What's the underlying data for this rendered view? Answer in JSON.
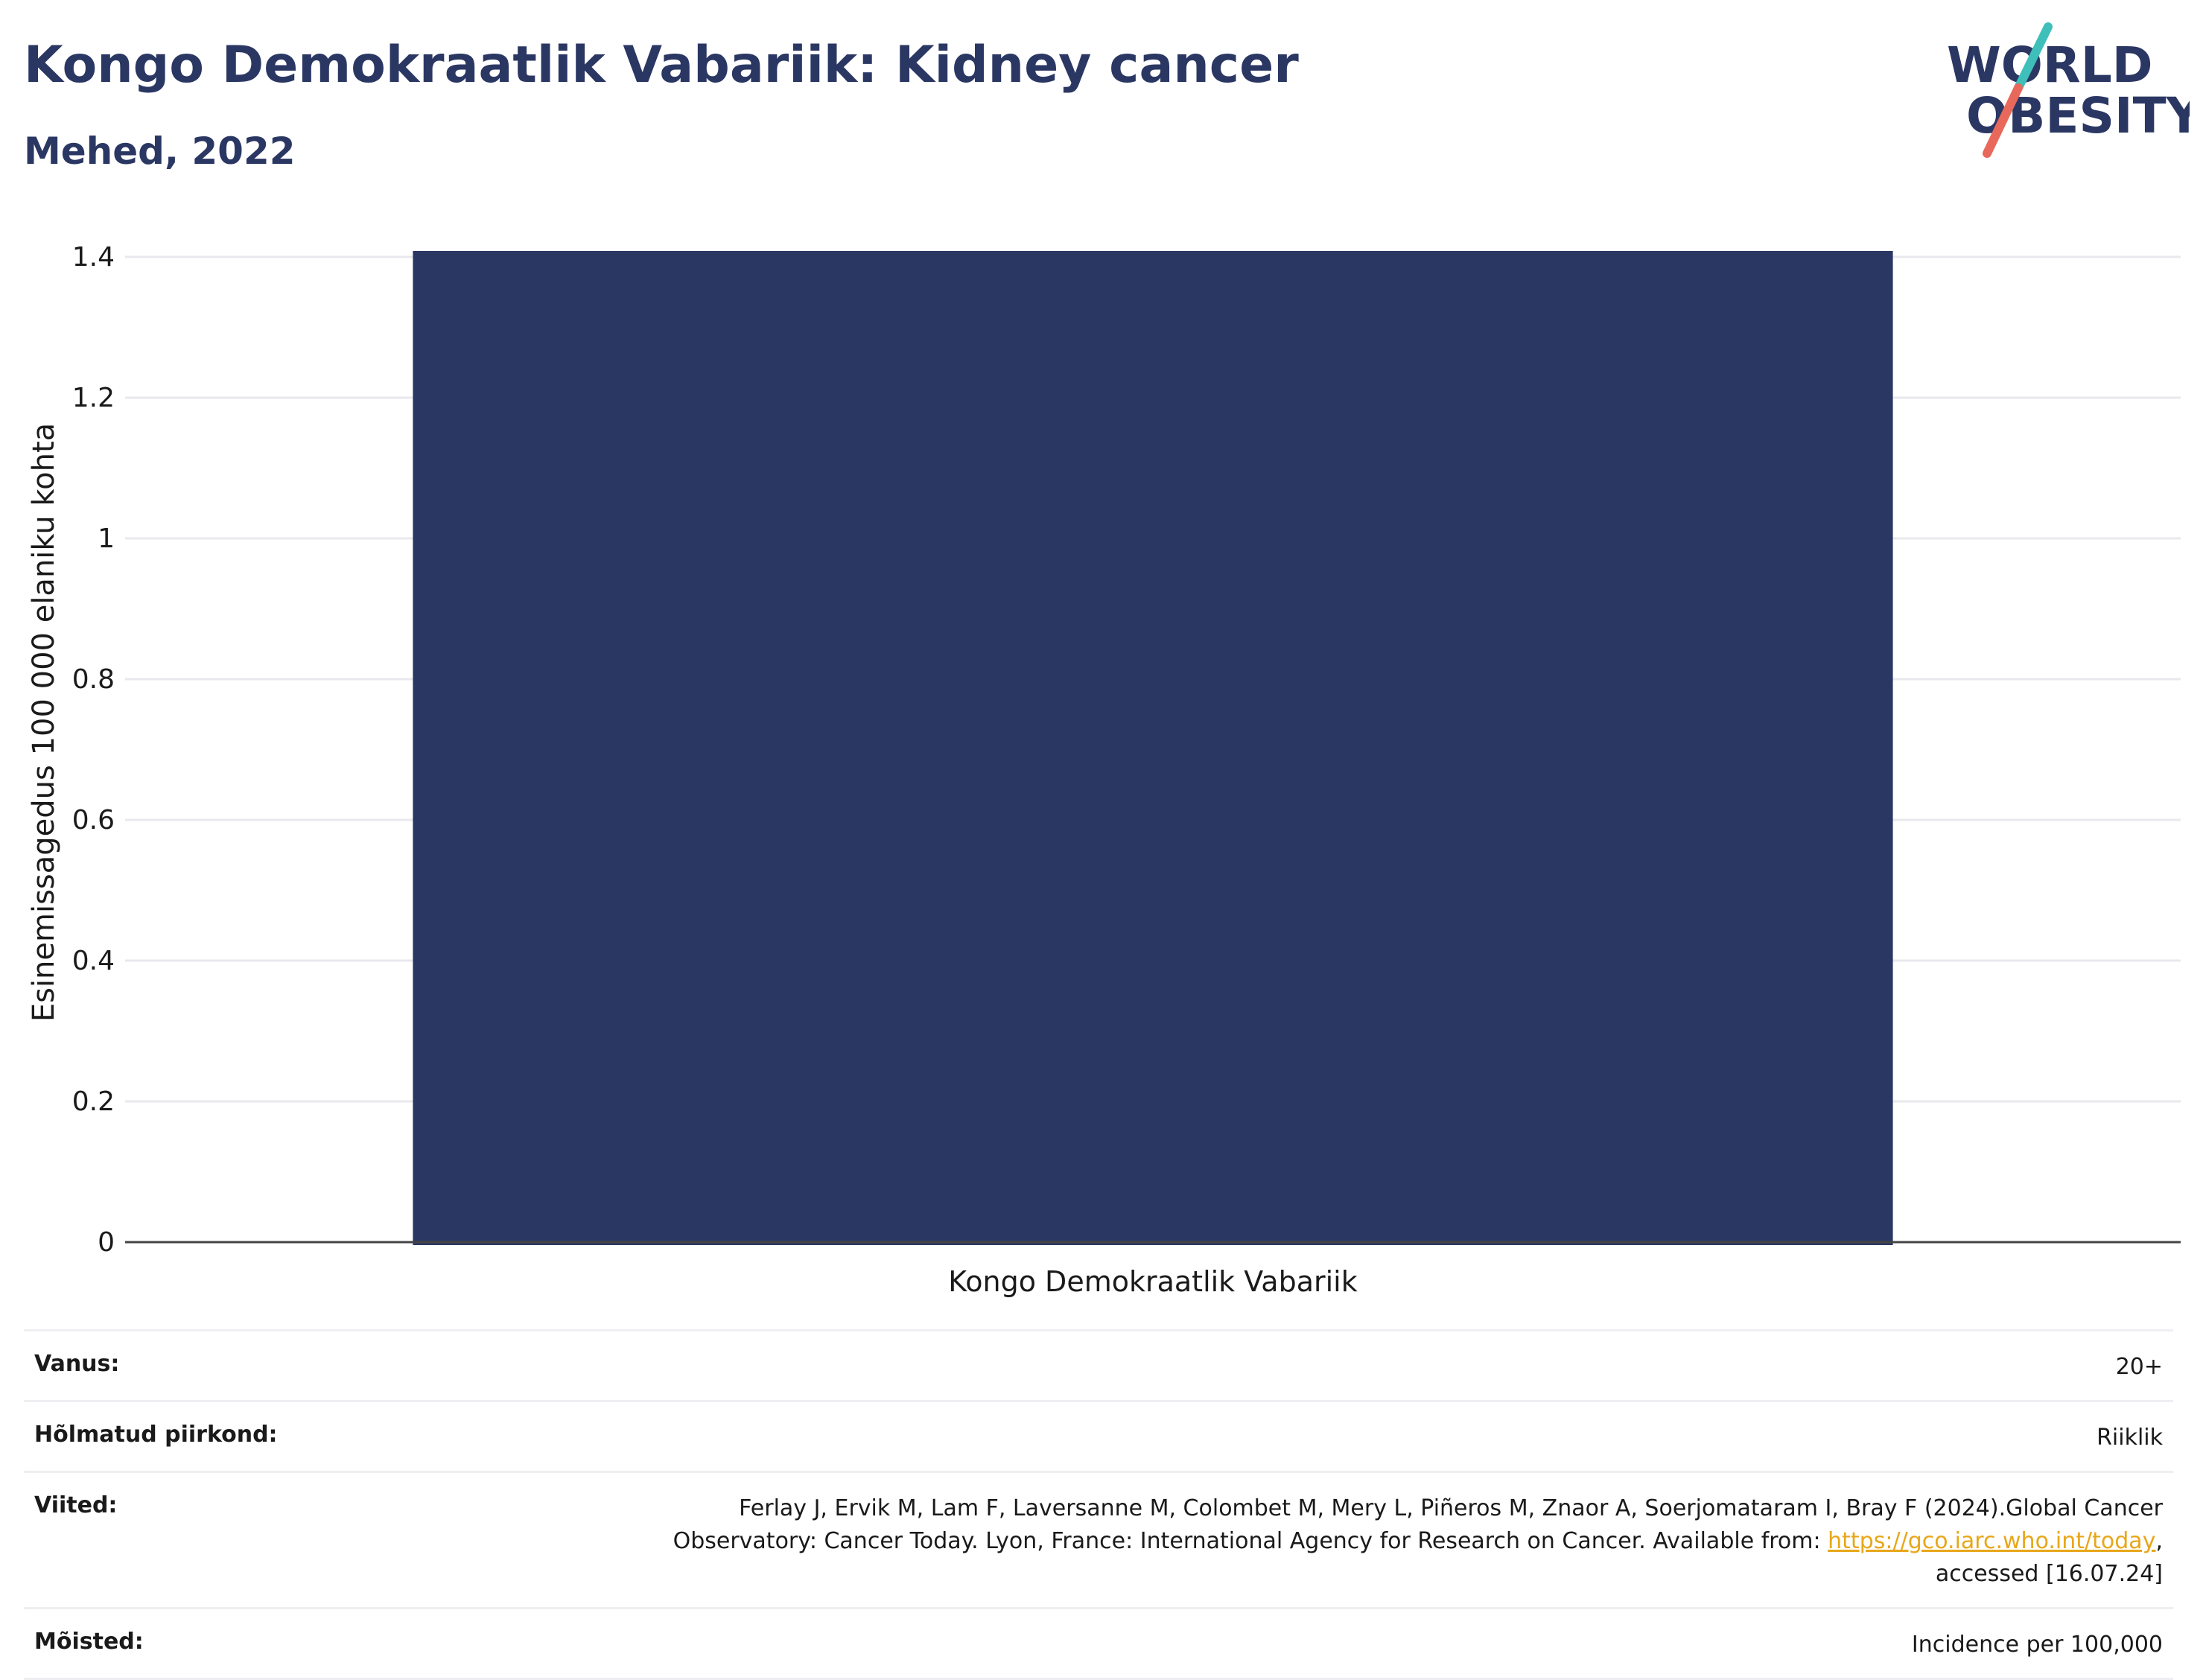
{
  "header": {
    "title": "Kongo Demokraatlik Vabariik: Kidney cancer",
    "subtitle": "Mehed, 2022"
  },
  "logo": {
    "line1": "WORLD",
    "line2": "OBESITY",
    "text_color": "#2b3763",
    "slash_colors": [
      "#3fbfb9",
      "#e8685b"
    ]
  },
  "chart_data": {
    "type": "bar",
    "categories": [
      "Kongo Demokraatlik Vabariik"
    ],
    "values": [
      1.41
    ],
    "ylabel": "Esinemissagedus 100 000 elaniku kohta",
    "xlabel": "",
    "ylim": [
      0,
      1.4
    ],
    "yticks": [
      0,
      0.2,
      0.4,
      0.6,
      0.8,
      1,
      1.2,
      1.4
    ],
    "ytick_labels": [
      "0",
      "0.2",
      "0.4",
      "0.6",
      "0.8",
      "1",
      "1.2",
      "1.4"
    ],
    "bar_color": "#2b3763",
    "grid": true
  },
  "info": {
    "age_label": "Vanus:",
    "age_value": "20+",
    "region_label": "Hõlmatud piirkond:",
    "region_value": "Riiklik",
    "refs_label": "Viited:",
    "refs_text_1": "Ferlay J, Ervik M, Lam F, Laversanne M, Colombet M, Mery L, Piñeros M, Znaor A, Soerjomataram I, Bray F (2024).Global Cancer",
    "refs_text_2": "Observatory: Cancer Today. Lyon, France: International Agency for Research on Cancer. Available from: ",
    "refs_link": "https://gco.iarc.who.int/today",
    "refs_text_3": ",",
    "refs_text_4": "accessed [16.07.24]",
    "defs_label": "Mõisted:",
    "defs_value": "Incidence per 100,000"
  }
}
